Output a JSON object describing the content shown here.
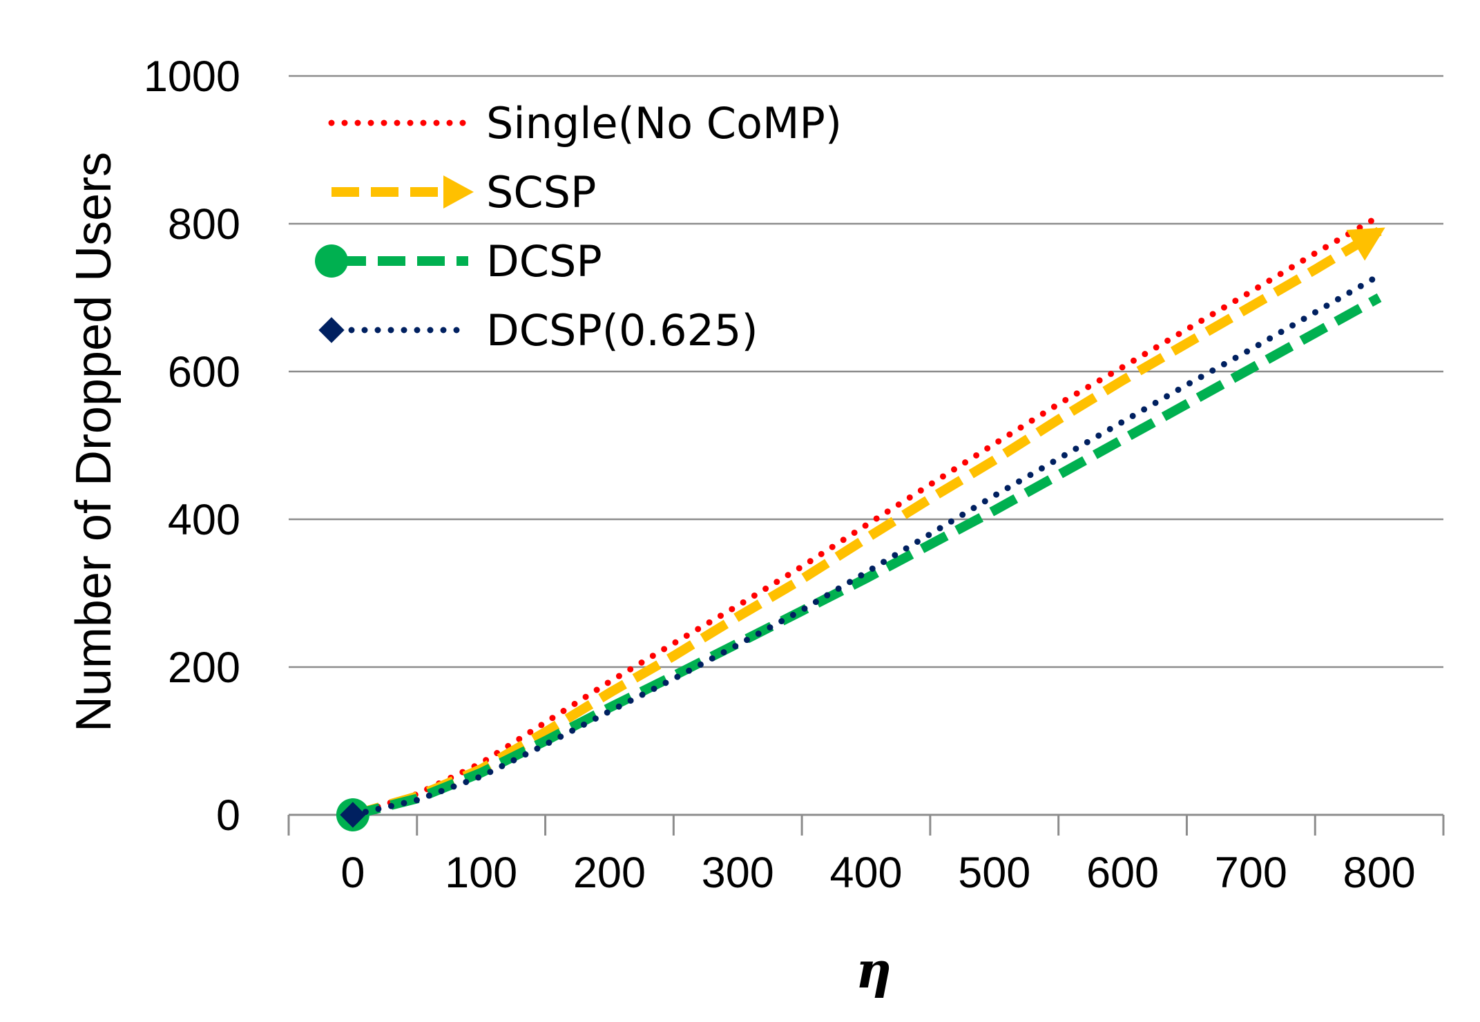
{
  "chart_data": {
    "type": "line",
    "title": "",
    "xlabel": "η",
    "ylabel": "Number of Dropped Users",
    "x": [
      0,
      100,
      200,
      300,
      400,
      500,
      600,
      700,
      800
    ],
    "xlim": [
      -50,
      850
    ],
    "ylim": [
      0,
      1000
    ],
    "yticks": [
      0,
      200,
      400,
      600,
      800,
      1000
    ],
    "grid": "horizontal",
    "legend_position": "top-left",
    "series": [
      {
        "name": "Single(No CoMP)",
        "color": "#ff0000",
        "line_style": "dotted",
        "marker": "none",
        "x": [
          0,
          50,
          100,
          150,
          200,
          250,
          300,
          350,
          400,
          450,
          500,
          550,
          600,
          650,
          700,
          750,
          800
        ],
        "values": [
          0,
          28,
          70,
          125,
          180,
          232,
          283,
          336,
          392,
          447,
          502,
          556,
          606,
          657,
          708,
          760,
          810
        ]
      },
      {
        "name": "SCSP",
        "color": "#ffc000",
        "line_style": "dashed",
        "marker": "arrow",
        "x": [
          0,
          50,
          100,
          150,
          200,
          250,
          300,
          350,
          400,
          450,
          500,
          550,
          600,
          650,
          700,
          750,
          800
        ],
        "values": [
          0,
          25,
          62,
          112,
          165,
          215,
          268,
          319,
          374,
          428,
          480,
          535,
          588,
          638,
          688,
          738,
          790
        ]
      },
      {
        "name": "DCSP",
        "color": "#00b050",
        "line_style": "dashed",
        "marker": "circle",
        "x": [
          0,
          50,
          100,
          150,
          200,
          250,
          300,
          350,
          400,
          450,
          500,
          550,
          600,
          650,
          700,
          750,
          800
        ],
        "values": [
          0,
          22,
          57,
          100,
          145,
          188,
          232,
          276,
          320,
          366,
          412,
          460,
          508,
          556,
          604,
          652,
          700
        ]
      },
      {
        "name": "DCSP(0.625)",
        "color": "#002060",
        "line_style": "dotted",
        "marker": "diamond",
        "x": [
          0,
          50,
          100,
          150,
          200,
          250,
          300,
          350,
          400,
          450,
          500,
          550,
          600,
          650,
          700,
          750,
          800
        ],
        "values": [
          0,
          20,
          52,
          95,
          140,
          184,
          230,
          277,
          328,
          380,
          432,
          482,
          532,
          582,
          630,
          680,
          730
        ]
      }
    ]
  }
}
